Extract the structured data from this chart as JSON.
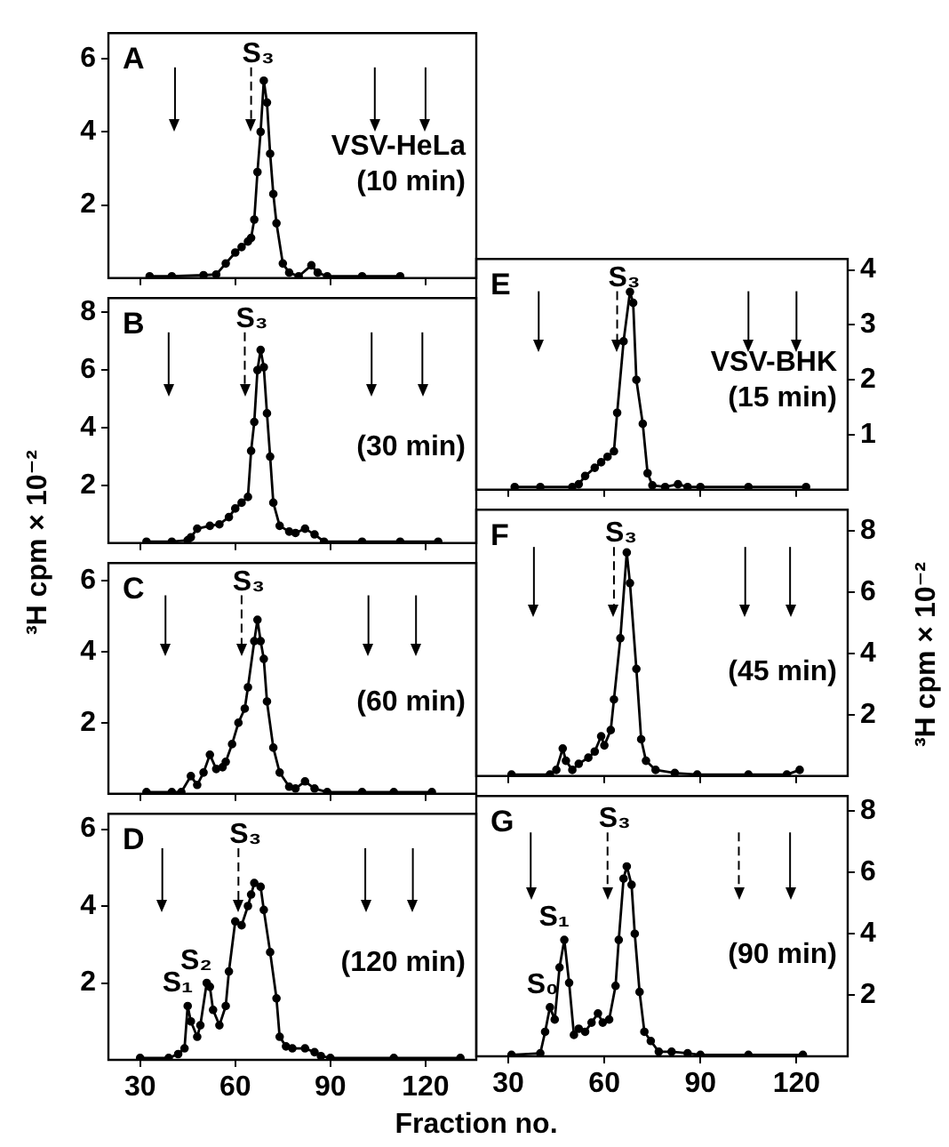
{
  "chart_data": [
    {
      "type": "line",
      "title": "A",
      "annotations": [
        "VSV-HeLa",
        "(10 min)"
      ],
      "marker": "circle",
      "tick_labels": "y",
      "xlim": [
        20,
        136
      ],
      "xticks": [
        30,
        60,
        90,
        120
      ],
      "ylim": [
        0,
        6.7
      ],
      "yticks": [
        2,
        4,
        6
      ],
      "x": [
        33,
        40,
        50,
        54,
        57,
        60,
        62,
        64,
        65,
        66,
        67,
        68,
        69,
        70,
        71,
        72,
        73,
        75,
        77,
        80,
        84,
        86,
        89,
        100,
        112
      ],
      "series": [
        {
          "color": "#000000",
          "values": [
            0.05,
            0.05,
            0.08,
            0.1,
            0.4,
            0.7,
            0.85,
            1.0,
            1.1,
            1.6,
            2.9,
            4.0,
            5.4,
            4.8,
            3.4,
            2.3,
            1.5,
            0.4,
            0.15,
            0.05,
            0.35,
            0.15,
            0.05,
            0.05,
            0.05
          ]
        }
      ],
      "ref_lines": [
        {
          "axis": "x",
          "value": 41,
          "line_style": "solid"
        },
        {
          "axis": "x",
          "value": 65,
          "label": "S₃",
          "line_style": "dashed"
        },
        {
          "axis": "x",
          "value": 104,
          "line_style": "solid"
        },
        {
          "axis": "x",
          "value": 120,
          "line_style": "solid"
        }
      ]
    },
    {
      "type": "line",
      "title": "B",
      "ylabel": "³H cpm × 10⁻²",
      "annotations": [
        "(30 min)"
      ],
      "marker": "circle",
      "tick_labels": "y",
      "xlim": [
        20,
        136
      ],
      "xticks": [
        30,
        60,
        90,
        120
      ],
      "ylim": [
        0,
        8.5
      ],
      "yticks": [
        2,
        4,
        6,
        8
      ],
      "x": [
        32,
        40,
        45,
        46,
        48,
        52,
        55,
        58,
        60,
        62,
        64,
        65,
        66,
        67,
        68,
        69,
        70,
        71,
        72,
        74,
        77,
        79,
        82,
        85,
        88,
        100,
        112,
        124
      ],
      "series": [
        {
          "color": "#000000",
          "values": [
            0.05,
            0.05,
            0.1,
            0.2,
            0.5,
            0.6,
            0.65,
            0.9,
            1.2,
            1.4,
            1.6,
            3.2,
            4.2,
            6.0,
            6.7,
            6.1,
            4.5,
            3.0,
            1.4,
            0.6,
            0.4,
            0.35,
            0.5,
            0.3,
            0.05,
            0.05,
            0.05,
            0.05
          ]
        }
      ],
      "ref_lines": [
        {
          "axis": "x",
          "value": 39,
          "line_style": "solid"
        },
        {
          "axis": "x",
          "value": 63,
          "label": "S₃",
          "line_style": "dashed"
        },
        {
          "axis": "x",
          "value": 103,
          "line_style": "solid"
        },
        {
          "axis": "x",
          "value": 119,
          "line_style": "solid"
        }
      ]
    },
    {
      "type": "line",
      "title": "C",
      "annotations": [
        "(60 min)"
      ],
      "marker": "circle",
      "tick_labels": "y",
      "xlim": [
        20,
        136
      ],
      "xticks": [
        30,
        60,
        90,
        120
      ],
      "ylim": [
        0,
        6.5
      ],
      "yticks": [
        2,
        4,
        6
      ],
      "x": [
        32,
        40,
        43,
        46,
        48,
        50,
        52,
        54,
        56,
        57,
        59,
        61,
        63,
        64,
        66,
        67,
        68,
        69,
        70,
        72,
        74,
        77,
        79,
        82,
        85,
        89,
        100,
        110,
        122
      ],
      "series": [
        {
          "color": "#000000",
          "values": [
            0.05,
            0.05,
            0.05,
            0.5,
            0.25,
            0.6,
            1.1,
            0.7,
            0.75,
            0.9,
            1.4,
            2.0,
            2.4,
            3.0,
            4.3,
            4.9,
            4.3,
            3.8,
            2.6,
            1.3,
            0.6,
            0.2,
            0.15,
            0.35,
            0.15,
            0.05,
            0.05,
            0.05,
            0.05
          ]
        }
      ],
      "ref_lines": [
        {
          "axis": "x",
          "value": 38,
          "line_style": "solid"
        },
        {
          "axis": "x",
          "value": 62,
          "label": "S₃",
          "line_style": "dashed"
        },
        {
          "axis": "x",
          "value": 102,
          "line_style": "solid"
        },
        {
          "axis": "x",
          "value": 117,
          "line_style": "solid"
        }
      ]
    },
    {
      "type": "line",
      "title": "D",
      "xlabel": "Fraction no.",
      "annotations": [
        "(120 min)",
        {
          "text": "S₁",
          "x": 45,
          "y": 1.4
        },
        {
          "text": "S₂",
          "x": 51,
          "y": 2.0
        }
      ],
      "marker": "circle",
      "xlim": [
        20,
        136
      ],
      "xticks": [
        30,
        60,
        90,
        120
      ],
      "ylim": [
        0,
        6.4
      ],
      "yticks": [
        2,
        4,
        6
      ],
      "x": [
        30,
        39,
        42,
        44,
        45,
        46,
        48,
        49,
        51,
        52,
        53,
        55,
        57,
        58,
        60,
        62,
        64,
        65,
        66,
        68,
        69,
        71,
        73,
        74,
        76,
        78,
        82,
        85,
        87,
        90,
        110,
        131
      ],
      "series": [
        {
          "color": "#000000",
          "values": [
            0.05,
            0.05,
            0.15,
            0.3,
            1.4,
            1.0,
            0.6,
            0.9,
            2.0,
            1.9,
            1.3,
            0.9,
            1.4,
            2.3,
            3.6,
            3.5,
            4.0,
            4.3,
            4.6,
            4.5,
            3.9,
            2.8,
            1.6,
            0.6,
            0.35,
            0.3,
            0.3,
            0.2,
            0.1,
            0.05,
            0.05,
            0.05
          ]
        }
      ],
      "ref_lines": [
        {
          "axis": "x",
          "value": 37,
          "line_style": "solid"
        },
        {
          "axis": "x",
          "value": 61,
          "label": "S₃",
          "line_style": "dashed"
        },
        {
          "axis": "x",
          "value": 101,
          "line_style": "solid"
        },
        {
          "axis": "x",
          "value": 116,
          "line_style": "solid"
        }
      ]
    },
    {
      "type": "line",
      "title": "E",
      "annotations": [
        "VSV-BHK",
        "(15 min)"
      ],
      "marker": "circle",
      "tick_labels": "y",
      "xlim": [
        20,
        136
      ],
      "xticks": [
        30,
        60,
        90,
        120
      ],
      "ylim": [
        0,
        4.2
      ],
      "yticks": [
        1,
        2,
        3,
        4
      ],
      "x": [
        32,
        40,
        50,
        52,
        54,
        57,
        59,
        61,
        63,
        64,
        66,
        68,
        69,
        70,
        72,
        73.5,
        75,
        79,
        83,
        86,
        90,
        105,
        123
      ],
      "series": [
        {
          "color": "#000000",
          "values": [
            0.05,
            0.05,
            0.05,
            0.1,
            0.25,
            0.4,
            0.5,
            0.6,
            0.7,
            1.4,
            2.7,
            3.6,
            3.4,
            2.0,
            1.2,
            0.3,
            0.08,
            0.05,
            0.1,
            0.05,
            0.05,
            0.05,
            0.05
          ]
        }
      ],
      "ref_lines": [
        {
          "axis": "x",
          "value": 39.5,
          "line_style": "solid"
        },
        {
          "axis": "x",
          "value": 64,
          "label": "S₃",
          "line_style": "dashed"
        },
        {
          "axis": "x",
          "value": 105,
          "line_style": "solid"
        },
        {
          "axis": "x",
          "value": 120,
          "line_style": "solid"
        }
      ]
    },
    {
      "type": "line",
      "title": "F",
      "ylabel": "³H cpm × 10⁻²",
      "annotations": [
        "(45 min)"
      ],
      "marker": "circle",
      "tick_labels": "y",
      "xlim": [
        20,
        136
      ],
      "xticks": [
        30,
        60,
        90,
        120
      ],
      "ylim": [
        0,
        8.7
      ],
      "yticks": [
        2,
        4,
        6,
        8
      ],
      "x": [
        31,
        43,
        45,
        47,
        48,
        50,
        52,
        55,
        57,
        59,
        60,
        62,
        63,
        65,
        67,
        68,
        70,
        71.5,
        73,
        76,
        82,
        89,
        105,
        117,
        121
      ],
      "series": [
        {
          "color": "#000000",
          "values": [
            0.05,
            0.05,
            0.2,
            0.9,
            0.5,
            0.2,
            0.4,
            0.6,
            0.8,
            1.3,
            1.0,
            1.5,
            2.5,
            4.5,
            7.3,
            6.3,
            3.5,
            1.2,
            0.5,
            0.2,
            0.1,
            0.05,
            0.05,
            0.05,
            0.2
          ]
        }
      ],
      "ref_lines": [
        {
          "axis": "x",
          "value": 38,
          "line_style": "solid"
        },
        {
          "axis": "x",
          "value": 63,
          "label": "S₃",
          "line_style": "dashed"
        },
        {
          "axis": "x",
          "value": 104,
          "line_style": "solid"
        },
        {
          "axis": "x",
          "value": 118,
          "line_style": "solid"
        }
      ]
    },
    {
      "type": "line",
      "title": "G",
      "annotations": [
        "(90 min)",
        {
          "text": "S₀",
          "x": 44,
          "y": 1.6
        },
        {
          "text": "S₁",
          "x": 47.5,
          "y": 3.8
        }
      ],
      "marker": "circle",
      "xlim": [
        20,
        136
      ],
      "xticks": [
        30,
        60,
        90,
        120
      ],
      "ylim": [
        0,
        8.5
      ],
      "yticks": [
        2,
        4,
        6,
        8
      ],
      "x": [
        31,
        40,
        41.5,
        43,
        44.5,
        46,
        47.5,
        49,
        50.5,
        52,
        54,
        56,
        58,
        59.5,
        61.5,
        63.5,
        64.5,
        66,
        67,
        68.5,
        69.5,
        71,
        72.5,
        74.5,
        77,
        81,
        86,
        90,
        105,
        122
      ],
      "series": [
        {
          "color": "#000000",
          "values": [
            0.05,
            0.1,
            0.8,
            1.6,
            1.2,
            2.9,
            3.8,
            2.4,
            0.7,
            0.9,
            0.8,
            1.1,
            1.4,
            1.1,
            1.2,
            2.3,
            3.8,
            5.8,
            6.2,
            5.6,
            4.0,
            2.1,
            0.8,
            0.5,
            0.15,
            0.15,
            0.1,
            0.05,
            0.05,
            0.05
          ]
        }
      ],
      "ref_lines": [
        {
          "axis": "x",
          "value": 37,
          "line_style": "solid"
        },
        {
          "axis": "x",
          "value": 61,
          "label": "S₃",
          "line_style": "dashed"
        },
        {
          "axis": "x",
          "value": 102,
          "line_style": "dashed"
        },
        {
          "axis": "x",
          "value": 118,
          "line_style": "solid"
        }
      ]
    }
  ]
}
